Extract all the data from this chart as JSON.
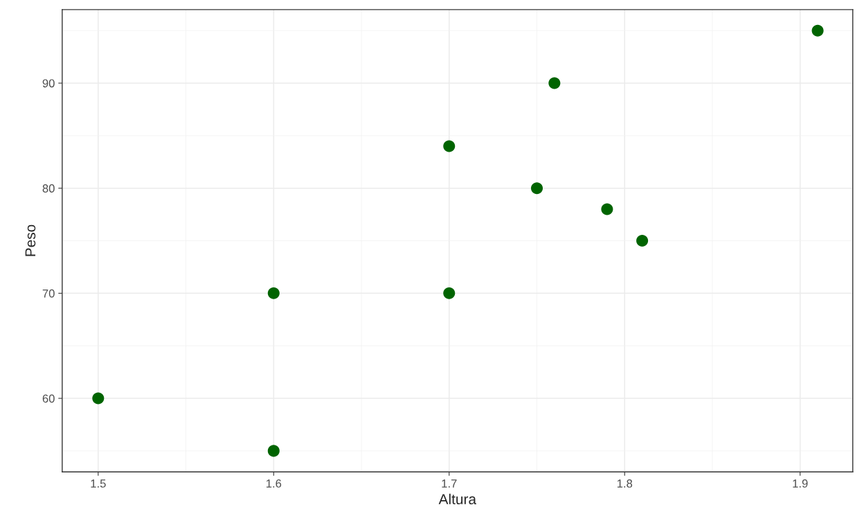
{
  "chart_data": {
    "type": "scatter",
    "xlabel": "Altura",
    "ylabel": "Peso",
    "x": [
      1.5,
      1.6,
      1.6,
      1.7,
      1.7,
      1.75,
      1.76,
      1.79,
      1.81,
      1.91
    ],
    "series": [
      {
        "color": "#006400",
        "values": [
          60,
          55,
          70,
          70,
          84,
          80,
          90,
          78,
          75,
          95
        ]
      }
    ],
    "xlim": [
      1.4795,
      1.93
    ],
    "ylim": [
      53,
      97
    ],
    "xticks": [
      1.5,
      1.6,
      1.7,
      1.8,
      1.9
    ],
    "yticks": [
      60,
      70,
      80,
      90
    ],
    "grid": true,
    "marker": "circle"
  }
}
